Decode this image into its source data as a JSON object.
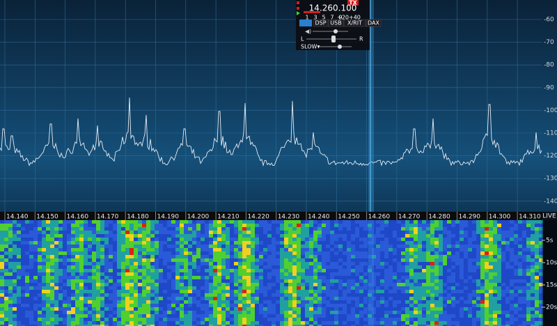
{
  "flag": {
    "frequency": "14.260.100",
    "tx": "TX",
    "meter_scale": [
      "1",
      "3",
      "5",
      "7",
      "9",
      "+20+40"
    ],
    "buttons": [
      "DSP",
      "USB",
      "X/RIT",
      "DAX"
    ],
    "balance_left": "L",
    "balance_right": "R",
    "agc": "SLOW▾"
  },
  "panadapter": {
    "db_labels": [
      "-60",
      "-70",
      "-80",
      "-90",
      "-100",
      "-110",
      "-120",
      "-130",
      "-140"
    ],
    "freq_labels": [
      "14.140",
      "14.150",
      "14.160",
      "14.170",
      "14.180",
      "14.190",
      "14.200",
      "14.210",
      "14.220",
      "14.230",
      "14.240",
      "14.250",
      "14.260",
      "14.270",
      "14.280",
      "14.290",
      "14.300",
      "14.310"
    ]
  },
  "waterfall": {
    "live": "LIVE",
    "time_labels": [
      "5s",
      "10s",
      "15s",
      "20s"
    ]
  }
}
